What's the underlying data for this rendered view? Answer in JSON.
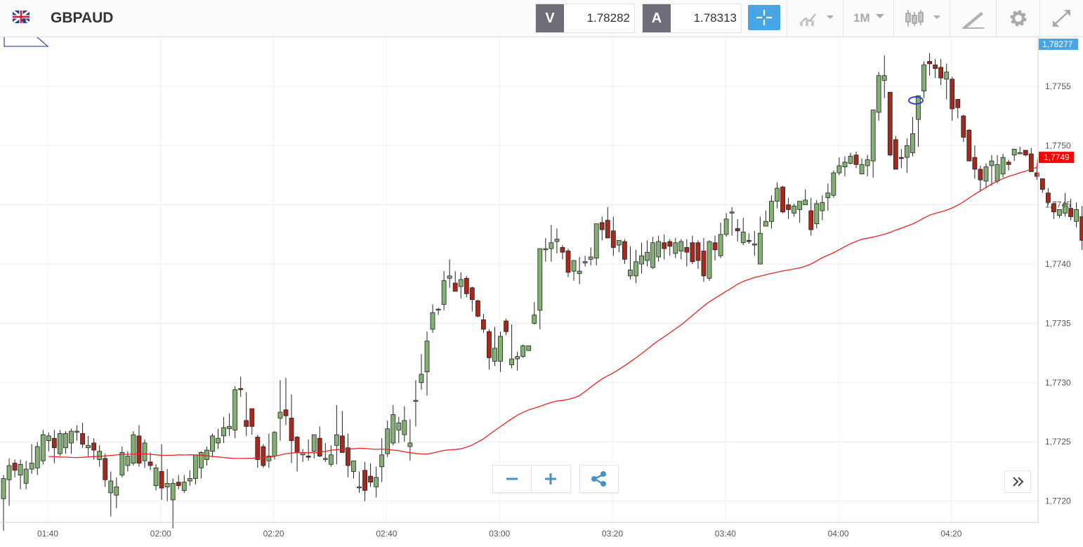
{
  "toolbar": {
    "symbol": "GBPAUD",
    "bid_label": "V",
    "bid_value": "1.78282",
    "ask_label": "A",
    "ask_value": "1.78313",
    "timeframe": "1M",
    "icons": [
      "flag-icon",
      "crosshair-icon",
      "chart-type-icon",
      "candles-icon",
      "draw-icon",
      "gear-icon",
      "fullscreen-icon"
    ]
  },
  "colors": {
    "up_candle": "#82b173",
    "down_candle": "#a8281c",
    "ma_line": "#e8231f",
    "current_price_badge": "#4aa5e6",
    "ma_badge": "#ff0000",
    "accent": "#4aa5e6"
  },
  "chart_data": {
    "type": "candlestick",
    "x_labels": [
      "01:40",
      "02:00",
      "02:20",
      "02:40",
      "03:00",
      "03:20",
      "03:40",
      "04:00",
      "04:20"
    ],
    "y_ticks": [
      "1,7720",
      "1,7725",
      "1,7730",
      "1,7735",
      "1,7740",
      "1,7745",
      "1,7750",
      "1,7755"
    ],
    "ylim": [
      1.77182,
      1.77592
    ],
    "current_price_badge": "1,78277",
    "ma_badge": "1,7749",
    "ma_value": 1.7749,
    "candles_ohlc": [
      [
        1.77202,
        1.77222,
        1.77175,
        1.77219
      ],
      [
        1.77218,
        1.77236,
        1.77196,
        1.7723
      ],
      [
        1.77232,
        1.77235,
        1.7722,
        1.77226
      ],
      [
        1.77222,
        1.77235,
        1.7721,
        1.77231
      ],
      [
        1.77215,
        1.77234,
        1.7721,
        1.77227
      ],
      [
        1.77227,
        1.77248,
        1.77223,
        1.77232
      ],
      [
        1.77228,
        1.7725,
        1.77222,
        1.77246
      ],
      [
        1.77234,
        1.7726,
        1.77231,
        1.77256
      ],
      [
        1.77251,
        1.77258,
        1.77242,
        1.77255
      ],
      [
        1.77253,
        1.7726,
        1.77232,
        1.77245
      ],
      [
        1.7724,
        1.7726,
        1.77238,
        1.77257
      ],
      [
        1.77245,
        1.77259,
        1.7724,
        1.77257
      ],
      [
        1.77249,
        1.77261,
        1.7724,
        1.77259
      ],
      [
        1.77259,
        1.77264,
        1.77251,
        1.77259
      ],
      [
        1.77257,
        1.77266,
        1.77245,
        1.77248
      ],
      [
        1.77245,
        1.77255,
        1.77238,
        1.77247
      ],
      [
        1.77249,
        1.77253,
        1.77235,
        1.77243
      ],
      [
        1.77235,
        1.77247,
        1.77229,
        1.77242
      ],
      [
        1.77236,
        1.7724,
        1.77212,
        1.77218
      ],
      [
        1.77207,
        1.77225,
        1.77187,
        1.77217
      ],
      [
        1.77205,
        1.7722,
        1.77194,
        1.77212
      ],
      [
        1.77222,
        1.77246,
        1.7722,
        1.77241
      ],
      [
        1.7723,
        1.77242,
        1.77225,
        1.77238
      ],
      [
        1.77232,
        1.77259,
        1.7723,
        1.77256
      ],
      [
        1.77255,
        1.77264,
        1.77229,
        1.77232
      ],
      [
        1.77234,
        1.77252,
        1.77228,
        1.77249
      ],
      [
        1.77233,
        1.77241,
        1.77226,
        1.7723
      ],
      [
        1.77213,
        1.77231,
        1.77209,
        1.77228
      ],
      [
        1.77225,
        1.77248,
        1.77201,
        1.77211
      ],
      [
        1.77212,
        1.77227,
        1.772,
        1.77215
      ],
      [
        1.77201,
        1.77219,
        1.77177,
        1.77215
      ],
      [
        1.77216,
        1.77222,
        1.7721,
        1.77213
      ],
      [
        1.77209,
        1.77222,
        1.77207,
        1.77216
      ],
      [
        1.77217,
        1.77226,
        1.77213,
        1.77219
      ],
      [
        1.77219,
        1.77238,
        1.77214,
        1.77239
      ],
      [
        1.77228,
        1.77242,
        1.77219,
        1.77241
      ],
      [
        1.77235,
        1.77246,
        1.7723,
        1.77243
      ],
      [
        1.77242,
        1.77257,
        1.77237,
        1.77255
      ],
      [
        1.77249,
        1.77261,
        1.77244,
        1.77253
      ],
      [
        1.77255,
        1.77271,
        1.77249,
        1.77262
      ],
      [
        1.77261,
        1.77274,
        1.77255,
        1.77263
      ],
      [
        1.7726,
        1.77297,
        1.77253,
        1.77294
      ],
      [
        1.77295,
        1.77305,
        1.77288,
        1.77294
      ],
      [
        1.77268,
        1.77292,
        1.77255,
        1.77263
      ],
      [
        1.77278,
        1.77275,
        1.77256,
        1.77263
      ],
      [
        1.77254,
        1.77256,
        1.77228,
        1.77235
      ],
      [
        1.77246,
        1.77248,
        1.77228,
        1.7723
      ],
      [
        1.77234,
        1.77257,
        1.77228,
        1.77238
      ],
      [
        1.77238,
        1.77259,
        1.77235,
        1.77258
      ],
      [
        1.7727,
        1.77302,
        1.77251,
        1.77275
      ],
      [
        1.77277,
        1.77304,
        1.77264,
        1.77272
      ],
      [
        1.7727,
        1.7729,
        1.77232,
        1.77251
      ],
      [
        1.77254,
        1.77255,
        1.77225,
        1.77241
      ],
      [
        1.77239,
        1.77244,
        1.77233,
        1.77241
      ],
      [
        1.77238,
        1.77252,
        1.77234,
        1.77237
      ],
      [
        1.77242,
        1.77256,
        1.77236,
        1.77256
      ],
      [
        1.77253,
        1.77263,
        1.77237,
        1.77238
      ],
      [
        1.77236,
        1.77249,
        1.77233,
        1.77236
      ],
      [
        1.77231,
        1.77247,
        1.77229,
        1.77239
      ],
      [
        1.77247,
        1.77281,
        1.77231,
        1.77256
      ],
      [
        1.77255,
        1.77276,
        1.77241,
        1.77241
      ],
      [
        1.77245,
        1.77257,
        1.7722,
        1.7723
      ],
      [
        1.77225,
        1.77234,
        1.77219,
        1.77234
      ],
      [
        1.77212,
        1.77225,
        1.77207,
        1.77212
      ],
      [
        1.77226,
        1.77233,
        1.772,
        1.77209
      ],
      [
        1.77221,
        1.77232,
        1.77212,
        1.77216
      ],
      [
        1.77212,
        1.77229,
        1.77203,
        1.7722
      ],
      [
        1.77229,
        1.77253,
        1.77216,
        1.77239
      ],
      [
        1.7724,
        1.77268,
        1.77237,
        1.77261
      ],
      [
        1.77249,
        1.77281,
        1.77247,
        1.77273
      ],
      [
        1.7726,
        1.77271,
        1.77249,
        1.77266
      ],
      [
        1.77256,
        1.7728,
        1.7725,
        1.77268
      ],
      [
        1.77246,
        1.77269,
        1.77234,
        1.77249
      ],
      [
        1.77285,
        1.77302,
        1.77263,
        1.77285
      ],
      [
        1.773,
        1.77324,
        1.77294,
        1.77307
      ],
      [
        1.77309,
        1.77343,
        1.77289,
        1.77335
      ],
      [
        1.77345,
        1.77366,
        1.77342,
        1.77359
      ],
      [
        1.77362,
        1.77363,
        1.77357,
        1.77362
      ],
      [
        1.77366,
        1.77394,
        1.77361,
        1.77386
      ],
      [
        1.77388,
        1.77404,
        1.7738,
        1.7739
      ],
      [
        1.77384,
        1.77394,
        1.77377,
        1.77377
      ],
      [
        1.77381,
        1.77393,
        1.77371,
        1.77387
      ],
      [
        1.77388,
        1.7739,
        1.77372,
        1.77375
      ],
      [
        1.7738,
        1.77381,
        1.7736,
        1.7737
      ],
      [
        1.77369,
        1.7737,
        1.77355,
        1.77356
      ],
      [
        1.77353,
        1.77358,
        1.77342,
        1.77345
      ],
      [
        1.77343,
        1.77345,
        1.77311,
        1.77321
      ],
      [
        1.77318,
        1.77347,
        1.77314,
        1.77329
      ],
      [
        1.77318,
        1.77343,
        1.77309,
        1.77339
      ],
      [
        1.77352,
        1.77354,
        1.7734,
        1.77343
      ],
      [
        1.77315,
        1.77349,
        1.77312,
        1.7732
      ],
      [
        1.7732,
        1.77326,
        1.7731,
        1.77322
      ],
      [
        1.77322,
        1.77332,
        1.77321,
        1.77331
      ],
      [
        1.77327,
        1.77331,
        1.77327,
        1.77331
      ],
      [
        1.7735,
        1.77368,
        1.77349,
        1.77357
      ],
      [
        1.77361,
        1.77372,
        1.77345,
        1.77413
      ],
      [
        1.77412,
        1.77422,
        1.77402,
        1.77413
      ],
      [
        1.77413,
        1.77433,
        1.77402,
        1.77418
      ],
      [
        1.77419,
        1.7743,
        1.77409,
        1.77421
      ],
      [
        1.77414,
        1.77416,
        1.77404,
        1.7741
      ],
      [
        1.77411,
        1.77413,
        1.77389,
        1.77393
      ],
      [
        1.77394,
        1.774,
        1.77386,
        1.77403
      ],
      [
        1.77392,
        1.77406,
        1.77383,
        1.77394
      ],
      [
        1.77401,
        1.77407,
        1.77398,
        1.77402
      ],
      [
        1.77404,
        1.77414,
        1.77399,
        1.77406
      ],
      [
        1.77405,
        1.7742,
        1.77399,
        1.77434
      ],
      [
        1.77435,
        1.7744,
        1.7742,
        1.77429
      ],
      [
        1.77437,
        1.77448,
        1.77432,
        1.77422
      ],
      [
        1.77428,
        1.7744,
        1.77407,
        1.77414
      ],
      [
        1.77416,
        1.7742,
        1.7741,
        1.7742
      ],
      [
        1.77419,
        1.77421,
        1.774,
        1.77404
      ],
      [
        1.7739,
        1.77415,
        1.77387,
        1.77395
      ],
      [
        1.7739,
        1.77412,
        1.77384,
        1.77402
      ],
      [
        1.774,
        1.77418,
        1.77392,
        1.77407
      ],
      [
        1.77403,
        1.7742,
        1.77398,
        1.7741
      ],
      [
        1.77397,
        1.77423,
        1.77396,
        1.77418
      ],
      [
        1.77406,
        1.77424,
        1.77402,
        1.77419
      ],
      [
        1.77418,
        1.77425,
        1.77404,
        1.77413
      ],
      [
        1.77419,
        1.77421,
        1.77407,
        1.77415
      ],
      [
        1.77409,
        1.77422,
        1.77405,
        1.77418
      ],
      [
        1.77411,
        1.77421,
        1.77404,
        1.77419
      ],
      [
        1.77414,
        1.77421,
        1.77398,
        1.7741
      ],
      [
        1.77418,
        1.77424,
        1.774,
        1.77402
      ],
      [
        1.77418,
        1.7742,
        1.77396,
        1.77403
      ],
      [
        1.77411,
        1.77422,
        1.77385,
        1.7739
      ],
      [
        1.77388,
        1.7742,
        1.77386,
        1.77419
      ],
      [
        1.77418,
        1.77424,
        1.77403,
        1.77412
      ],
      [
        1.77407,
        1.77435,
        1.77405,
        1.77425
      ],
      [
        1.77425,
        1.77443,
        1.77423,
        1.77438
      ],
      [
        1.77443,
        1.77448,
        1.77424,
        1.77444
      ],
      [
        1.7743,
        1.77438,
        1.77419,
        1.77428
      ],
      [
        1.77418,
        1.77439,
        1.77416,
        1.77427
      ],
      [
        1.7742,
        1.77426,
        1.77417,
        1.77419
      ],
      [
        1.77416,
        1.77428,
        1.77407,
        1.77417
      ],
      [
        1.774,
        1.7744,
        1.774,
        1.77426
      ],
      [
        1.77432,
        1.77445,
        1.77433,
        1.77436
      ],
      [
        1.77436,
        1.77458,
        1.7743,
        1.77453
      ],
      [
        1.77453,
        1.77469,
        1.77447,
        1.77464
      ],
      [
        1.77465,
        1.77466,
        1.77443,
        1.77444
      ],
      [
        1.7745,
        1.77456,
        1.77438,
        1.77446
      ],
      [
        1.77443,
        1.77451,
        1.7744,
        1.77449
      ],
      [
        1.77446,
        1.77453,
        1.77435,
        1.77453
      ],
      [
        1.7745,
        1.77463,
        1.77451,
        1.77454
      ],
      [
        1.77445,
        1.77456,
        1.77424,
        1.77429
      ],
      [
        1.77434,
        1.77454,
        1.7743,
        1.77451
      ],
      [
        1.77445,
        1.77458,
        1.77437,
        1.77452
      ],
      [
        1.77456,
        1.77468,
        1.77445,
        1.7746
      ],
      [
        1.77458,
        1.77479,
        1.77456,
        1.77477
      ],
      [
        1.77477,
        1.7749,
        1.77475,
        1.77483
      ],
      [
        1.77482,
        1.77491,
        1.77474,
        1.77486
      ],
      [
        1.77485,
        1.77494,
        1.77484,
        1.77491
      ],
      [
        1.77492,
        1.77495,
        1.77481,
        1.77484
      ],
      [
        1.77476,
        1.77489,
        1.77477,
        1.77484
      ],
      [
        1.77483,
        1.77492,
        1.77474,
        1.77488
      ],
      [
        1.77487,
        1.77519,
        1.77473,
        1.7753
      ],
      [
        1.77528,
        1.77562,
        1.77521,
        1.77559
      ],
      [
        1.77555,
        1.77576,
        1.7754,
        1.77559
      ],
      [
        1.77545,
        1.77545,
        1.77491,
        1.77492
      ],
      [
        1.77505,
        1.77508,
        1.77482,
        1.7748
      ],
      [
        1.7749,
        1.77497,
        1.77481,
        1.77489
      ],
      [
        1.7749,
        1.77506,
        1.77477,
        1.775
      ],
      [
        1.77494,
        1.77524,
        1.77491,
        1.7751
      ],
      [
        1.77522,
        1.77541,
        1.77499,
        1.77542
      ],
      [
        1.77546,
        1.77571,
        1.7754,
        1.77568
      ],
      [
        1.77571,
        1.77578,
        1.77559,
        1.77569
      ],
      [
        1.77568,
        1.77573,
        1.77557,
        1.77565
      ],
      [
        1.77566,
        1.77573,
        1.77551,
        1.77557
      ],
      [
        1.77556,
        1.77569,
        1.77539,
        1.77562
      ],
      [
        1.77556,
        1.77558,
        1.77521,
        1.77531
      ],
      [
        1.77539,
        1.77539,
        1.77523,
        1.77532
      ],
      [
        1.77525,
        1.77526,
        1.77503,
        1.77507
      ],
      [
        1.77513,
        1.77514,
        1.77487,
        1.77487
      ],
      [
        1.7749,
        1.775,
        1.77472,
        1.7748
      ],
      [
        1.7748,
        1.77483,
        1.77461,
        1.77471
      ],
      [
        1.7747,
        1.77485,
        1.77464,
        1.77482
      ],
      [
        1.77483,
        1.77492,
        1.77466,
        1.77487
      ],
      [
        1.7747,
        1.77492,
        1.77468,
        1.77484
      ],
      [
        1.77476,
        1.77493,
        1.77473,
        1.7749
      ],
      [
        1.77486,
        1.77488,
        1.77479,
        1.77484
      ],
      [
        1.77492,
        1.77497,
        1.77487,
        1.77497
      ],
      [
        1.77493,
        1.77499,
        1.77493,
        1.77494
      ],
      [
        1.77496,
        1.77496,
        1.77491,
        1.77492
      ],
      [
        1.77493,
        1.77498,
        1.77478,
        1.77478
      ],
      [
        1.77477,
        1.77483,
        1.77471,
        1.77474
      ],
      [
        1.77472,
        1.77472,
        1.7746,
        1.77463
      ],
      [
        1.7746,
        1.77464,
        1.7745,
        1.77452
      ],
      [
        1.77451,
        1.77452,
        1.77438,
        1.77444
      ],
      [
        1.77441,
        1.77446,
        1.77439,
        1.77446
      ],
      [
        1.77443,
        1.7746,
        1.7744,
        1.77451
      ],
      [
        1.77447,
        1.77455,
        1.77437,
        1.7744
      ],
      [
        1.77436,
        1.77452,
        1.77431,
        1.77446
      ],
      [
        1.7744,
        1.77449,
        1.77412,
        1.7742
      ],
      [
        1.77418,
        1.77427,
        1.77419,
        1.77425
      ]
    ]
  }
}
